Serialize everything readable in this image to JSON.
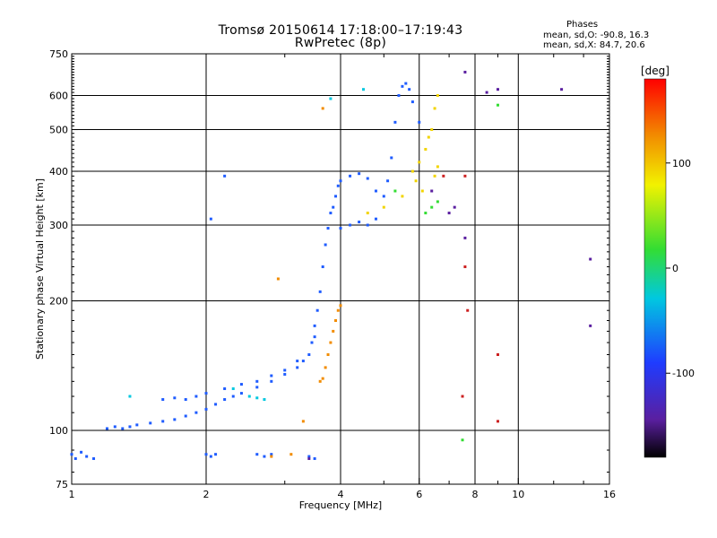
{
  "header": {
    "title_line1": "Tromsø 20150614 17:18:00–17:19:43",
    "title_line2": "RwPretec (8p)"
  },
  "phases": {
    "heading": "Phases",
    "line_o": "mean, sd,O: -90.8, 16.3",
    "line_x": "mean, sd,X:  84.7, 20.6"
  },
  "chart_data": {
    "type": "scatter",
    "xlabel": "Frequency [MHz]",
    "ylabel": "Stationary phase Virtual Height [km]",
    "xscale": "log",
    "yscale": "log",
    "xlim": [
      1,
      16
    ],
    "ylim": [
      75,
      750
    ],
    "xticks": [
      1,
      2,
      4,
      6,
      8,
      10,
      16
    ],
    "xtick_labels": [
      "1",
      "2",
      "4",
      "6",
      "8",
      "10",
      "16"
    ],
    "x_minor_ticks": [
      3,
      5,
      7,
      9,
      12,
      14
    ],
    "yticks": [
      75,
      100,
      200,
      300,
      400,
      500,
      600,
      750
    ],
    "ytick_labels": [
      "75",
      "100",
      "200",
      "300",
      "400",
      "500",
      "600",
      "750"
    ],
    "grid": true,
    "colorbar": {
      "label": "[deg]",
      "range": [
        -180,
        180
      ],
      "ticks": [
        -100,
        0,
        100
      ],
      "tick_labels": [
        "-100",
        "0",
        "100"
      ],
      "colormap": "rainbow-black-to-red"
    },
    "series": [
      {
        "color": "#1f5cff",
        "points": [
          [
            1.0,
            88
          ],
          [
            1.02,
            86
          ],
          [
            1.05,
            89
          ],
          [
            1.08,
            87
          ],
          [
            1.12,
            86
          ],
          [
            1.2,
            101
          ],
          [
            1.25,
            102
          ],
          [
            1.3,
            101
          ],
          [
            1.35,
            102
          ],
          [
            1.4,
            103
          ],
          [
            1.5,
            104
          ],
          [
            1.6,
            105
          ],
          [
            1.7,
            106
          ],
          [
            1.8,
            108
          ],
          [
            1.9,
            110
          ],
          [
            2.0,
            112
          ],
          [
            2.1,
            115
          ],
          [
            2.2,
            118
          ],
          [
            2.3,
            120
          ],
          [
            2.4,
            122
          ],
          [
            2.6,
            126
          ],
          [
            2.8,
            130
          ],
          [
            3.0,
            135
          ],
          [
            3.2,
            140
          ],
          [
            3.3,
            145
          ],
          [
            3.4,
            150
          ],
          [
            3.45,
            160
          ],
          [
            3.5,
            175
          ],
          [
            3.55,
            190
          ],
          [
            3.6,
            210
          ],
          [
            3.65,
            240
          ],
          [
            3.7,
            270
          ],
          [
            3.75,
            295
          ],
          [
            3.8,
            320
          ],
          [
            3.85,
            330
          ],
          [
            3.9,
            350
          ],
          [
            3.95,
            370
          ],
          [
            4.0,
            380
          ],
          [
            4.2,
            390
          ],
          [
            4.4,
            395
          ],
          [
            4.6,
            385
          ],
          [
            4.8,
            360
          ],
          [
            5.0,
            350
          ],
          [
            5.1,
            380
          ],
          [
            5.2,
            430
          ],
          [
            5.3,
            520
          ],
          [
            5.4,
            600
          ],
          [
            5.5,
            630
          ],
          [
            5.6,
            640
          ],
          [
            5.7,
            620
          ],
          [
            5.8,
            580
          ],
          [
            6.0,
            520
          ],
          [
            1.6,
            118
          ],
          [
            1.7,
            119
          ],
          [
            1.8,
            118
          ],
          [
            1.9,
            120
          ],
          [
            2.0,
            122
          ],
          [
            2.2,
            125
          ],
          [
            2.4,
            128
          ],
          [
            2.6,
            130
          ],
          [
            2.8,
            134
          ],
          [
            3.0,
            138
          ],
          [
            3.2,
            145
          ],
          [
            3.5,
            165
          ],
          [
            4.0,
            295
          ],
          [
            4.2,
            300
          ],
          [
            4.4,
            305
          ],
          [
            4.6,
            300
          ],
          [
            4.8,
            310
          ],
          [
            2.0,
            88
          ],
          [
            2.05,
            87
          ],
          [
            2.1,
            88
          ],
          [
            2.6,
            88
          ],
          [
            2.7,
            87
          ],
          [
            2.8,
            88
          ],
          [
            3.4,
            87
          ],
          [
            3.5,
            86
          ],
          [
            2.2,
            390
          ],
          [
            2.05,
            310
          ]
        ]
      },
      {
        "color": "#00c8e0",
        "points": [
          [
            1.35,
            120
          ],
          [
            2.3,
            125
          ],
          [
            2.5,
            120
          ],
          [
            2.6,
            119
          ],
          [
            2.7,
            118
          ],
          [
            4.5,
            620
          ],
          [
            3.8,
            590
          ]
        ]
      },
      {
        "color": "#f2d400",
        "points": [
          [
            5.8,
            400
          ],
          [
            6.0,
            420
          ],
          [
            6.2,
            450
          ],
          [
            6.4,
            500
          ],
          [
            6.5,
            560
          ],
          [
            6.6,
            600
          ],
          [
            6.3,
            480
          ],
          [
            5.9,
            380
          ],
          [
            6.1,
            360
          ],
          [
            5.5,
            350
          ],
          [
            5.0,
            330
          ],
          [
            4.6,
            320
          ],
          [
            6.5,
            390
          ],
          [
            6.6,
            410
          ]
        ]
      },
      {
        "color": "#f28c00",
        "points": [
          [
            3.6,
            130
          ],
          [
            3.65,
            132
          ],
          [
            3.7,
            140
          ],
          [
            3.75,
            150
          ],
          [
            3.8,
            160
          ],
          [
            3.85,
            170
          ],
          [
            3.9,
            180
          ],
          [
            3.95,
            190
          ],
          [
            4.0,
            195
          ],
          [
            3.3,
            105
          ],
          [
            2.9,
            225
          ],
          [
            2.8,
            87
          ],
          [
            3.1,
            88
          ],
          [
            3.65,
            560
          ]
        ]
      },
      {
        "color": "#33dd33",
        "points": [
          [
            6.2,
            320
          ],
          [
            6.4,
            330
          ],
          [
            7.5,
            95
          ],
          [
            9.0,
            570
          ],
          [
            6.6,
            340
          ],
          [
            5.3,
            360
          ]
        ]
      },
      {
        "color": "#cc2020",
        "points": [
          [
            7.6,
            390
          ],
          [
            7.5,
            120
          ],
          [
            7.7,
            190
          ],
          [
            9.0,
            105
          ],
          [
            9.0,
            150
          ],
          [
            7.6,
            240
          ],
          [
            6.8,
            390
          ]
        ]
      },
      {
        "color": "#5a1fa0",
        "points": [
          [
            7.0,
            320
          ],
          [
            7.2,
            330
          ],
          [
            7.6,
            280
          ],
          [
            8.5,
            610
          ],
          [
            9.0,
            620
          ],
          [
            12.5,
            620
          ],
          [
            14.5,
            250
          ],
          [
            14.5,
            175
          ],
          [
            6.4,
            360
          ],
          [
            7.6,
            680
          ],
          [
            3.4,
            86
          ]
        ]
      }
    ]
  }
}
